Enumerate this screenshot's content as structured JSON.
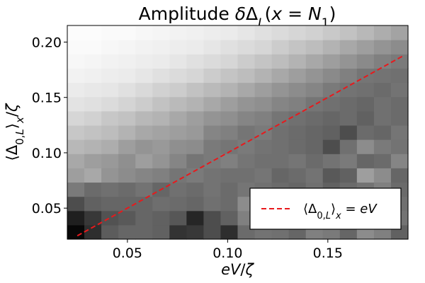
{
  "chart_data": {
    "type": "heatmap",
    "title": "Amplitude δΔ_L(x = N_1)",
    "xlabel": "eV/ζ",
    "ylabel": "⟨Δ_{0,L}⟩_x/ζ",
    "xlim": [
      0.02,
      0.19
    ],
    "ylim": [
      0.022,
      0.215
    ],
    "x_ticks": [
      "0.05",
      "0.10",
      "0.15"
    ],
    "y_ticks": [
      "0.05",
      "0.10",
      "0.15",
      "0.20"
    ],
    "colormap": "grayscale (black = low, white = high)",
    "grid": {
      "cols": 20,
      "rows": 15
    },
    "cells": [
      [
        0.03,
        0.18,
        0.36,
        0.4,
        0.4,
        0.38,
        0.2,
        0.22,
        0.3,
        0.18,
        0.42,
        0.45,
        0.44,
        0.4,
        0.5,
        0.48,
        0.4,
        0.55,
        0.5,
        0.38
      ],
      [
        0.12,
        0.22,
        0.32,
        0.35,
        0.4,
        0.38,
        0.34,
        0.15,
        0.3,
        0.38,
        0.5,
        0.48,
        0.46,
        0.4,
        0.46,
        0.45,
        0.5,
        0.42,
        0.48,
        0.45
      ],
      [
        0.3,
        0.38,
        0.4,
        0.4,
        0.4,
        0.43,
        0.42,
        0.4,
        0.44,
        0.42,
        0.55,
        0.52,
        0.45,
        0.42,
        0.48,
        0.46,
        0.44,
        0.48,
        0.5,
        0.44
      ],
      [
        0.48,
        0.42,
        0.44,
        0.42,
        0.45,
        0.4,
        0.44,
        0.42,
        0.45,
        0.42,
        0.46,
        0.44,
        0.42,
        0.4,
        0.44,
        0.38,
        0.42,
        0.45,
        0.5,
        0.42
      ],
      [
        0.62,
        0.66,
        0.58,
        0.55,
        0.52,
        0.5,
        0.46,
        0.48,
        0.45,
        0.44,
        0.44,
        0.46,
        0.4,
        0.42,
        0.45,
        0.35,
        0.38,
        0.62,
        0.55,
        0.4
      ],
      [
        0.66,
        0.62,
        0.6,
        0.56,
        0.62,
        0.58,
        0.52,
        0.46,
        0.48,
        0.5,
        0.46,
        0.44,
        0.44,
        0.46,
        0.42,
        0.45,
        0.48,
        0.4,
        0.42,
        0.52
      ],
      [
        0.72,
        0.7,
        0.68,
        0.62,
        0.58,
        0.6,
        0.56,
        0.55,
        0.48,
        0.46,
        0.48,
        0.45,
        0.44,
        0.42,
        0.4,
        0.3,
        0.44,
        0.55,
        0.48,
        0.45
      ],
      [
        0.78,
        0.76,
        0.74,
        0.7,
        0.66,
        0.64,
        0.62,
        0.6,
        0.52,
        0.5,
        0.46,
        0.48,
        0.44,
        0.42,
        0.4,
        0.38,
        0.3,
        0.42,
        0.4,
        0.46
      ],
      [
        0.84,
        0.82,
        0.78,
        0.76,
        0.72,
        0.7,
        0.66,
        0.62,
        0.58,
        0.56,
        0.52,
        0.5,
        0.46,
        0.44,
        0.42,
        0.4,
        0.42,
        0.38,
        0.44,
        0.42
      ],
      [
        0.89,
        0.88,
        0.86,
        0.83,
        0.8,
        0.76,
        0.73,
        0.7,
        0.66,
        0.62,
        0.58,
        0.56,
        0.52,
        0.5,
        0.46,
        0.44,
        0.42,
        0.4,
        0.44,
        0.42
      ],
      [
        0.92,
        0.91,
        0.9,
        0.88,
        0.85,
        0.82,
        0.8,
        0.76,
        0.73,
        0.7,
        0.66,
        0.62,
        0.58,
        0.55,
        0.52,
        0.48,
        0.45,
        0.44,
        0.42,
        0.45
      ],
      [
        0.95,
        0.94,
        0.93,
        0.92,
        0.9,
        0.88,
        0.86,
        0.84,
        0.8,
        0.77,
        0.74,
        0.7,
        0.66,
        0.62,
        0.58,
        0.54,
        0.5,
        0.46,
        0.45,
        0.44
      ],
      [
        0.97,
        0.96,
        0.95,
        0.94,
        0.93,
        0.92,
        0.9,
        0.88,
        0.86,
        0.84,
        0.8,
        0.77,
        0.74,
        0.7,
        0.66,
        0.62,
        0.58,
        0.54,
        0.5,
        0.48
      ],
      [
        0.98,
        0.98,
        0.97,
        0.96,
        0.95,
        0.94,
        0.93,
        0.92,
        0.9,
        0.88,
        0.86,
        0.84,
        0.8,
        0.77,
        0.74,
        0.7,
        0.66,
        0.62,
        0.58,
        0.55
      ],
      [
        0.99,
        0.99,
        0.98,
        0.98,
        0.97,
        0.96,
        0.95,
        0.94,
        0.93,
        0.92,
        0.9,
        0.88,
        0.86,
        0.84,
        0.82,
        0.79,
        0.76,
        0.72,
        0.68,
        0.64
      ]
    ],
    "series": [
      {
        "name": "⟨Δ_{0,L}⟩_x = eV",
        "style": "dashed",
        "color": "#e8191c",
        "x": [
          0.025,
          0.188
        ],
        "y": [
          0.025,
          0.188
        ]
      }
    ],
    "legend_position": "lower-right"
  }
}
